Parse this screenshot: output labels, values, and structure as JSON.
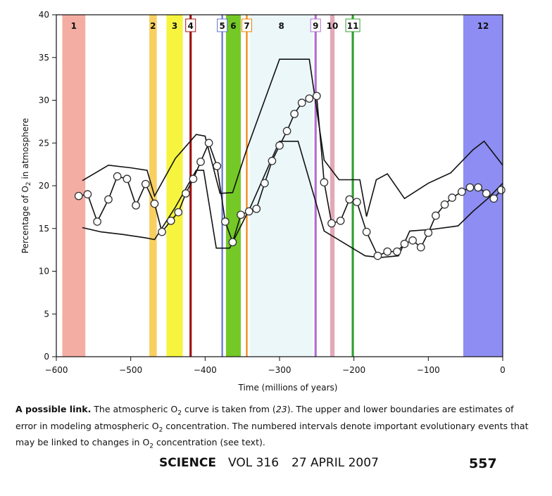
{
  "chart_data": {
    "type": "line",
    "xlabel": "Time (millions of years)",
    "ylabel_main": "Percentage of O",
    "ylabel_sub": "2",
    "ylabel_rest": " in atmosphere",
    "xlim": [
      -600,
      0
    ],
    "ylim": [
      0,
      40
    ],
    "xticks": [
      -600,
      -500,
      -400,
      -300,
      -200,
      -100,
      0
    ],
    "xtick_labels": [
      "−600",
      "−500",
      "−400",
      "−300",
      "−200",
      "−100",
      "0"
    ],
    "yticks": [
      0,
      5,
      10,
      15,
      20,
      25,
      30,
      35,
      40
    ],
    "ytick_labels": [
      "0",
      "5",
      "10",
      "15",
      "20",
      "25",
      "30",
      "35",
      "40"
    ],
    "grid": false,
    "bands": [
      {
        "label": "1",
        "x0": -592,
        "x1": -561,
        "color": "#f08a7a",
        "opacity": 0.7,
        "label_color": "#111111",
        "box": false
      },
      {
        "label": "2",
        "x0": -475,
        "x1": -465,
        "color": "#f5c02a",
        "opacity": 0.75,
        "label_color": "#111111",
        "box": false
      },
      {
        "label": "3",
        "x0": -452,
        "x1": -430,
        "color": "#f4f000",
        "opacity": 0.75,
        "label_color": "#111111",
        "box": false
      },
      {
        "label": "4",
        "x0": -421,
        "x1": -418,
        "color": "#a01010",
        "opacity": 1.0,
        "label_color": "#111111",
        "box": true
      },
      {
        "label": "5",
        "x0": -378,
        "x1": -376,
        "color": "#6070d0",
        "opacity": 1.0,
        "label_color": "#111111",
        "box": true
      },
      {
        "label": "6",
        "x0": -372,
        "x1": -352,
        "color": "#5cc000",
        "opacity": 0.85,
        "label_color": "#111111",
        "box": false
      },
      {
        "label": "7",
        "x0": -345,
        "x1": -343,
        "color": "#f08000",
        "opacity": 1.0,
        "label_color": "#111111",
        "box": true
      },
      {
        "label": "8",
        "x0": -340,
        "x1": -255,
        "color": "#e2f4f6",
        "opacity": 0.7,
        "label_color": "#111111",
        "box": false
      },
      {
        "label": "9",
        "x0": -253,
        "x1": -250,
        "color": "#b070d0",
        "opacity": 1.0,
        "label_color": "#111111",
        "box": true
      },
      {
        "label": "10",
        "x0": -232,
        "x1": -226,
        "color": "#e0a0b0",
        "opacity": 0.9,
        "label_color": "#111111",
        "box": false
      },
      {
        "label": "11",
        "x0": -203,
        "x1": -200,
        "color": "#30a030",
        "opacity": 1.0,
        "label_color": "#111111",
        "box": true
      },
      {
        "label": "12",
        "x0": -53,
        "x1": 0,
        "color": "#7070f0",
        "opacity": 0.8,
        "label_color": "#111111",
        "box": false
      }
    ],
    "series": [
      {
        "role": "estimate",
        "marker": "circle",
        "x": [
          -570,
          -558,
          -545,
          -530,
          -518,
          -505,
          -493,
          -480,
          -468,
          -458,
          -446,
          -436,
          -426,
          -416,
          -406,
          -395,
          -384,
          -373,
          -363,
          -352,
          -341,
          -331,
          -320,
          -310,
          -300,
          -290,
          -280,
          -270,
          -260,
          -250,
          -240,
          -230,
          -218,
          -206,
          -196,
          -183,
          -168,
          -155,
          -142,
          -132,
          -121,
          -110,
          -100,
          -90,
          -78,
          -68,
          -55,
          -44,
          -33,
          -22,
          -12,
          -2
        ],
        "y": [
          18.8,
          19.0,
          15.8,
          18.4,
          21.1,
          20.8,
          17.7,
          20.2,
          17.9,
          14.6,
          15.9,
          16.9,
          19.1,
          20.8,
          22.8,
          25.0,
          22.3,
          15.8,
          13.4,
          16.6,
          17.0,
          17.3,
          20.3,
          22.9,
          24.7,
          26.4,
          28.4,
          29.7,
          30.2,
          30.5,
          20.4,
          15.6,
          15.9,
          18.4,
          18.1,
          14.6,
          11.8,
          12.3,
          12.3,
          13.2,
          13.6,
          12.8,
          14.5,
          16.5,
          17.8,
          18.6,
          19.3,
          19.8,
          19.8,
          19.1,
          18.5,
          19.5
        ]
      },
      {
        "role": "upper-bound",
        "marker": "none",
        "x": [
          -565,
          -530,
          -500,
          -478,
          -468,
          -440,
          -412,
          -400,
          -380,
          -363,
          -345,
          -300,
          -260,
          -240,
          -220,
          -205,
          -192,
          -183,
          -170,
          -155,
          -132,
          -100,
          -70,
          -40,
          -25,
          0
        ],
        "y": [
          20.6,
          22.4,
          22.1,
          21.8,
          18.8,
          23.2,
          26.0,
          25.8,
          19.1,
          19.2,
          24.0,
          34.8,
          34.8,
          23.0,
          20.7,
          20.7,
          20.7,
          16.4,
          20.7,
          21.4,
          18.5,
          20.3,
          21.5,
          24.2,
          25.2,
          22.4
        ]
      },
      {
        "role": "lower-bound",
        "marker": "none",
        "x": [
          -565,
          -540,
          -510,
          -480,
          -468,
          -440,
          -412,
          -402,
          -385,
          -367,
          -338,
          -300,
          -275,
          -240,
          -185,
          -165,
          -140,
          -125,
          -95,
          -60,
          -40,
          -20,
          0
        ],
        "y": [
          15.1,
          14.6,
          14.3,
          13.9,
          13.7,
          17.5,
          21.8,
          21.8,
          12.7,
          12.7,
          17.7,
          25.2,
          25.2,
          14.7,
          11.8,
          11.6,
          11.8,
          14.7,
          14.9,
          15.3,
          17.0,
          18.5,
          20.3
        ]
      }
    ]
  },
  "caption": {
    "title": "A possible link.",
    "part1": " The atmospheric O",
    "sub1": "2",
    "part2": " curve is taken from (",
    "ref": "23",
    "part3": "). The upper and lower boundaries are estimates of error in modeling atmospheric O",
    "sub2": "2",
    "part4": " concentration. The numbered intervals denote important evolutionary events that may be linked to changes in O",
    "sub3": "2",
    "part5": " concentration (see text)."
  },
  "footer": {
    "journal": "SCIENCE",
    "volume": "VOL 316",
    "date": "27 APRIL 2007",
    "page": "557"
  }
}
